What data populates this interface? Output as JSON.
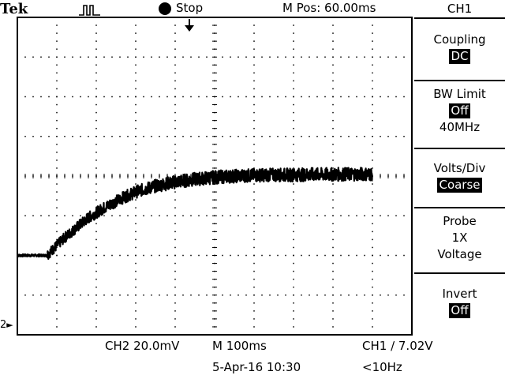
{
  "header": {
    "brand": "Tek",
    "run_state": "Stop",
    "horizontal_position": "M Pos: 60.00ms"
  },
  "menu": {
    "title": "CH1",
    "items": [
      {
        "label": "Coupling",
        "value": "DC"
      },
      {
        "label": "BW Limit",
        "value": "Off",
        "sub": "40MHz"
      },
      {
        "label": "Volts/Div",
        "value": "Coarse"
      },
      {
        "label": "Probe",
        "line2": "1X",
        "line3": "Voltage"
      },
      {
        "label": "Invert",
        "value": "Off"
      }
    ]
  },
  "footer": {
    "ch2_scale": "CH2  20.0mV",
    "timebase": "M 100ms",
    "trigger": "CH1 ∕ 7.02V",
    "date": "5-Apr-16 10:30",
    "freq": "<10Hz"
  },
  "markers": {
    "channel_marker": "2"
  },
  "colors": {
    "trace": "#000000",
    "grid": "#000000",
    "background": "#ffffff"
  },
  "chart_data": {
    "type": "line",
    "x": [
      0,
      0.3,
      0.6,
      0.72,
      0.8,
      1.0,
      1.2,
      1.5,
      1.8,
      2.2,
      2.6,
      3.0,
      3.5,
      4.0,
      4.5,
      5.0,
      5.5,
      6.0,
      6.5,
      7.0,
      7.5,
      8.0,
      8.5,
      9.0
    ],
    "y": [
      0.0,
      0.0,
      0.0,
      0.0,
      0.05,
      0.25,
      0.45,
      0.7,
      0.95,
      1.2,
      1.42,
      1.6,
      1.75,
      1.85,
      1.92,
      1.97,
      2.0,
      2.02,
      2.03,
      2.03,
      2.04,
      2.04,
      2.05,
      2.05
    ],
    "xlim": [
      0,
      10
    ],
    "ylim": [
      -2.0,
      6.0
    ],
    "grid": true
  }
}
